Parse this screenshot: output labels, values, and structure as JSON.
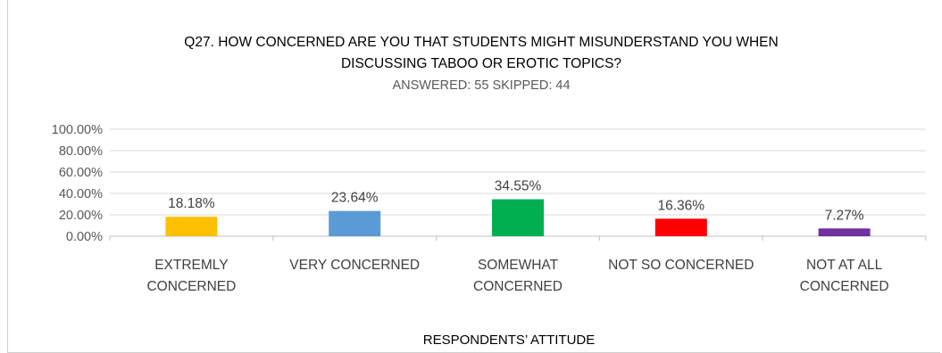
{
  "chart_data": {
    "type": "bar",
    "title_lines": [
      "Q27. HOW CONCERNED ARE YOU THAT STUDENTS MIGHT MISUNDERSTAND YOU WHEN",
      "DISCUSSING TABOO OR EROTIC TOPICS?"
    ],
    "subtitle": "ANSWERED: 55   SKIPPED: 44",
    "categories": [
      [
        "EXTREMLY",
        "CONCERNED"
      ],
      [
        "VERY CONCERNED"
      ],
      [
        "SOMEWHAT",
        "CONCERNED"
      ],
      [
        "NOT SO CONCERNED"
      ],
      [
        "NOT AT ALL",
        "CONCERNED"
      ]
    ],
    "values": [
      18.18,
      23.64,
      34.55,
      16.36,
      7.27
    ],
    "value_labels": [
      "18.18%",
      "23.64%",
      "34.55%",
      "16.36%",
      "7.27%"
    ],
    "colors": [
      "#FFC000",
      "#5B9BD5",
      "#00B050",
      "#FF0000",
      "#7030A0"
    ],
    "ylim": [
      0,
      100
    ],
    "yticks": [
      0,
      20,
      40,
      60,
      80,
      100
    ],
    "ytick_labels": [
      "0.00%",
      "20.00%",
      "40.00%",
      "60.00%",
      "80.00%",
      "100.00%"
    ],
    "xlabel": "RESPONDENTS’ ATTITUDE",
    "ylabel": "",
    "grid": true,
    "legend": "none"
  }
}
